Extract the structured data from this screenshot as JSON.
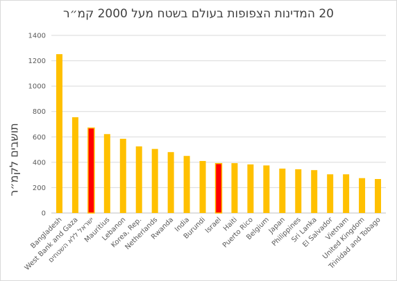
{
  "chart_data": {
    "type": "bar",
    "title": "20 המדינות הצפופות בעולם בשטח מעל 2000 קמ״ר",
    "xlabel": "",
    "ylabel": "תושבים לקמ״ר",
    "ylim": [
      0,
      1400
    ],
    "yticks": [
      "0",
      "200",
      "400",
      "600",
      "800",
      "1000",
      "1200",
      "1400"
    ],
    "grid": true,
    "legend": "none",
    "categories": [
      "Bangladesh",
      "West Bank and Gaza",
      "ישראל ללא השטחים",
      "Mauritius",
      "Lebanon",
      "Korea, Rep.",
      "Netherlands",
      "Rwanda",
      "India",
      "Burundi",
      "Israel",
      "Haiti",
      "Puerto Rico",
      "Belgium",
      "Japan",
      "Philippines",
      "Sri Lanka",
      "El Salvador",
      "Vietnam",
      "United Kingdom",
      "Trinidad and Tobago"
    ],
    "values": [
      1252,
      755,
      670,
      622,
      585,
      525,
      505,
      480,
      450,
      410,
      390,
      393,
      383,
      375,
      350,
      345,
      338,
      305,
      305,
      275,
      268
    ],
    "highlighted": [
      2,
      10
    ],
    "colors": {
      "bar": "#ffc000",
      "highlight_fill": "#ff0000",
      "highlight_border": "#ffc000",
      "grid": "#d9d9d9",
      "axis": "#bfbfbf",
      "text": "#595959"
    }
  }
}
